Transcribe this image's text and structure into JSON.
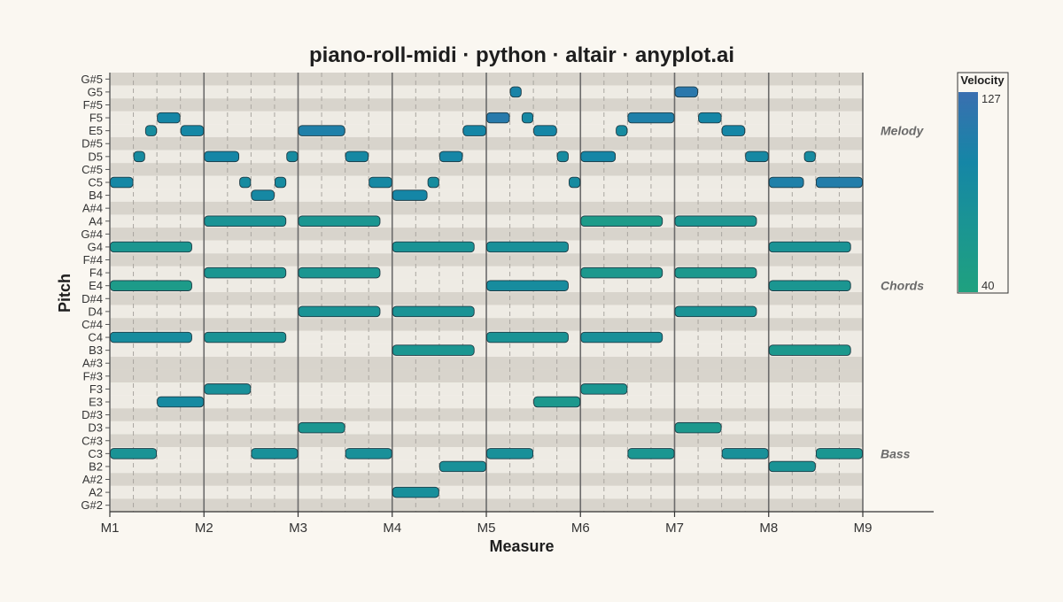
{
  "chart_data": {
    "type": "piano-roll",
    "title": "piano-roll-midi · python · altair · anyplot.ai",
    "xlabel": "Measure",
    "ylabel": "Pitch",
    "x_unit": "beats (4 beats per measure)",
    "xlim": [
      0,
      32
    ],
    "x_ticks": [
      {
        "label": "M1",
        "beat": 0
      },
      {
        "label": "M2",
        "beat": 4
      },
      {
        "label": "M3",
        "beat": 8
      },
      {
        "label": "M4",
        "beat": 12
      },
      {
        "label": "M5",
        "beat": 16
      },
      {
        "label": "M6",
        "beat": 20
      },
      {
        "label": "M7",
        "beat": 24
      },
      {
        "label": "M8",
        "beat": 28
      },
      {
        "label": "M9",
        "beat": 32
      }
    ],
    "pitch_range": [
      "G#2",
      "G#5"
    ],
    "pitch_labels": [
      "G#5",
      "G5",
      "F#5",
      "F5",
      "E5",
      "D#5",
      "D5",
      "C#5",
      "C5",
      "B4",
      "A#4",
      "A4",
      "G#4",
      "G4",
      "F#4",
      "F4",
      "E4",
      "D#4",
      "D4",
      "C#4",
      "C4",
      "B3",
      "A#3",
      "F#3",
      "F3",
      "E3",
      "D#3",
      "D3",
      "C#3",
      "C3",
      "B2",
      "A#2",
      "A2",
      "G#2"
    ],
    "grid": true,
    "legend": {
      "title": "Velocity",
      "max_label": "127",
      "min_label": "40",
      "min": 40,
      "max": 127,
      "placement": "right"
    },
    "voice_annotations": [
      {
        "text": "Melody",
        "pitch": "E5"
      },
      {
        "text": "Chords",
        "pitch": "E4"
      },
      {
        "text": "Bass",
        "pitch": "C3"
      }
    ],
    "series": [
      {
        "name": "Melody",
        "notes": [
          {
            "pitch": "C5",
            "start": 0,
            "duration": 1,
            "velocity": 95
          },
          {
            "pitch": "D5",
            "start": 1,
            "duration": 0.5,
            "velocity": 88
          },
          {
            "pitch": "E5",
            "start": 1.5,
            "duration": 0.5,
            "velocity": 85
          },
          {
            "pitch": "F5",
            "start": 2,
            "duration": 1,
            "velocity": 96
          },
          {
            "pitch": "E5",
            "start": 3,
            "duration": 1,
            "velocity": 95
          },
          {
            "pitch": "D5",
            "start": 4,
            "duration": 1.5,
            "velocity": 96
          },
          {
            "pitch": "C5",
            "start": 5.5,
            "duration": 0.5,
            "velocity": 88
          },
          {
            "pitch": "B4",
            "start": 6,
            "duration": 1,
            "velocity": 92
          },
          {
            "pitch": "C5",
            "start": 7,
            "duration": 0.5,
            "velocity": 88
          },
          {
            "pitch": "D5",
            "start": 7.5,
            "duration": 0.5,
            "velocity": 88
          },
          {
            "pitch": "E5",
            "start": 8,
            "duration": 2,
            "velocity": 105
          },
          {
            "pitch": "D5",
            "start": 10,
            "duration": 1,
            "velocity": 92
          },
          {
            "pitch": "C5",
            "start": 11,
            "duration": 1,
            "velocity": 92
          },
          {
            "pitch": "B4",
            "start": 12,
            "duration": 1.5,
            "velocity": 96
          },
          {
            "pitch": "C5",
            "start": 13.5,
            "duration": 0.5,
            "velocity": 85
          },
          {
            "pitch": "D5",
            "start": 14,
            "duration": 1,
            "velocity": 96
          },
          {
            "pitch": "E5",
            "start": 15,
            "duration": 1,
            "velocity": 96
          },
          {
            "pitch": "F5",
            "start": 16,
            "duration": 1,
            "velocity": 112
          },
          {
            "pitch": "G5",
            "start": 17,
            "duration": 0.5,
            "velocity": 100
          },
          {
            "pitch": "F5",
            "start": 17.5,
            "duration": 0.5,
            "velocity": 92
          },
          {
            "pitch": "E5",
            "start": 18,
            "duration": 1,
            "velocity": 96
          },
          {
            "pitch": "D5",
            "start": 19,
            "duration": 0.5,
            "velocity": 88
          },
          {
            "pitch": "C5",
            "start": 19.5,
            "duration": 0.5,
            "velocity": 88
          },
          {
            "pitch": "D5",
            "start": 20,
            "duration": 1.5,
            "velocity": 96
          },
          {
            "pitch": "E5",
            "start": 21.5,
            "duration": 0.5,
            "velocity": 88
          },
          {
            "pitch": "F5",
            "start": 22,
            "duration": 2,
            "velocity": 105
          },
          {
            "pitch": "G5",
            "start": 24,
            "duration": 1,
            "velocity": 115
          },
          {
            "pitch": "F5",
            "start": 25,
            "duration": 1,
            "velocity": 96
          },
          {
            "pitch": "E5",
            "start": 26,
            "duration": 1,
            "velocity": 96
          },
          {
            "pitch": "D5",
            "start": 27,
            "duration": 1,
            "velocity": 92
          },
          {
            "pitch": "C5",
            "start": 28,
            "duration": 1.5,
            "velocity": 105
          },
          {
            "pitch": "D5",
            "start": 29.5,
            "duration": 0.5,
            "velocity": 88
          },
          {
            "pitch": "C5",
            "start": 30,
            "duration": 2,
            "velocity": 108
          }
        ]
      },
      {
        "name": "Chords",
        "notes": [
          {
            "pitch": "G4",
            "start": 0,
            "duration": 3.5,
            "velocity": 65
          },
          {
            "pitch": "E4",
            "start": 0,
            "duration": 3.5,
            "velocity": 55
          },
          {
            "pitch": "C4",
            "start": 0,
            "duration": 3.5,
            "velocity": 85
          },
          {
            "pitch": "A4",
            "start": 4,
            "duration": 3.5,
            "velocity": 72
          },
          {
            "pitch": "F4",
            "start": 4,
            "duration": 3.5,
            "velocity": 66
          },
          {
            "pitch": "C4",
            "start": 4,
            "duration": 3.5,
            "velocity": 72
          },
          {
            "pitch": "A4",
            "start": 8,
            "duration": 3.5,
            "velocity": 66
          },
          {
            "pitch": "F4",
            "start": 8,
            "duration": 3.5,
            "velocity": 66
          },
          {
            "pitch": "D4",
            "start": 8,
            "duration": 3.5,
            "velocity": 72
          },
          {
            "pitch": "G4",
            "start": 12,
            "duration": 3.5,
            "velocity": 72
          },
          {
            "pitch": "D4",
            "start": 12,
            "duration": 3.5,
            "velocity": 72
          },
          {
            "pitch": "B3",
            "start": 12,
            "duration": 3.5,
            "velocity": 66
          },
          {
            "pitch": "G4",
            "start": 16,
            "duration": 3.5,
            "velocity": 78
          },
          {
            "pitch": "E4",
            "start": 16,
            "duration": 3.5,
            "velocity": 85
          },
          {
            "pitch": "C4",
            "start": 16,
            "duration": 3.5,
            "velocity": 72
          },
          {
            "pitch": "A4",
            "start": 20,
            "duration": 3.5,
            "velocity": 55
          },
          {
            "pitch": "F4",
            "start": 20,
            "duration": 3.5,
            "velocity": 60
          },
          {
            "pitch": "C4",
            "start": 20,
            "duration": 3.5,
            "velocity": 78
          },
          {
            "pitch": "A4",
            "start": 24,
            "duration": 3.5,
            "velocity": 66
          },
          {
            "pitch": "F4",
            "start": 24,
            "duration": 3.5,
            "velocity": 60
          },
          {
            "pitch": "D4",
            "start": 24,
            "duration": 3.5,
            "velocity": 72
          },
          {
            "pitch": "G4",
            "start": 28,
            "duration": 3.5,
            "velocity": 72
          },
          {
            "pitch": "E4",
            "start": 28,
            "duration": 3.5,
            "velocity": 66
          },
          {
            "pitch": "B3",
            "start": 28,
            "duration": 3.5,
            "velocity": 60
          }
        ]
      },
      {
        "name": "Bass",
        "notes": [
          {
            "pitch": "C3",
            "start": 0,
            "duration": 2,
            "velocity": 72
          },
          {
            "pitch": "E3",
            "start": 2,
            "duration": 2,
            "velocity": 90
          },
          {
            "pitch": "F3",
            "start": 4,
            "duration": 2,
            "velocity": 78
          },
          {
            "pitch": "C3",
            "start": 6,
            "duration": 2,
            "velocity": 78
          },
          {
            "pitch": "D3",
            "start": 8,
            "duration": 2,
            "velocity": 66
          },
          {
            "pitch": "C3",
            "start": 10,
            "duration": 2,
            "velocity": 78
          },
          {
            "pitch": "A2",
            "start": 12,
            "duration": 2,
            "velocity": 80
          },
          {
            "pitch": "B2",
            "start": 14,
            "duration": 2,
            "velocity": 78
          },
          {
            "pitch": "C3",
            "start": 16,
            "duration": 2,
            "velocity": 78
          },
          {
            "pitch": "E3",
            "start": 18,
            "duration": 2,
            "velocity": 60
          },
          {
            "pitch": "F3",
            "start": 20,
            "duration": 2,
            "velocity": 66
          },
          {
            "pitch": "C3",
            "start": 22,
            "duration": 2,
            "velocity": 66
          },
          {
            "pitch": "D3",
            "start": 24,
            "duration": 2,
            "velocity": 60
          },
          {
            "pitch": "C3",
            "start": 26,
            "duration": 2,
            "velocity": 78
          },
          {
            "pitch": "B2",
            "start": 28,
            "duration": 2,
            "velocity": 72
          },
          {
            "pitch": "C3",
            "start": 30,
            "duration": 2,
            "velocity": 66
          }
        ]
      }
    ]
  }
}
